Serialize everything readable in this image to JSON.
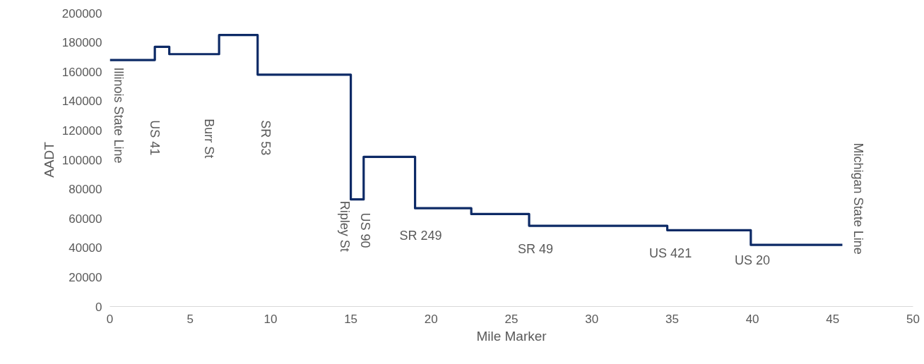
{
  "chart_data": {
    "type": "step",
    "xlabel": "Mile Marker",
    "ylabel": "AADT",
    "series": [
      {
        "color": "#0d2a66",
        "x": [
          0,
          2.8,
          3.7,
          6.8,
          9.2,
          15.0,
          15.8,
          19.0,
          22.5,
          26.1,
          34.7,
          39.9,
          45.6
        ],
        "values": [
          168000,
          177000,
          172000,
          185000,
          158000,
          73000,
          102000,
          67000,
          63000,
          55000,
          52000,
          42000,
          42000
        ]
      }
    ],
    "xlim": [
      0,
      50
    ],
    "xticks": [
      0,
      5,
      10,
      15,
      20,
      25,
      30,
      35,
      40,
      45,
      50
    ],
    "ylim": [
      0,
      200000
    ],
    "yticks": [
      0,
      20000,
      40000,
      60000,
      80000,
      100000,
      120000,
      140000,
      160000,
      180000,
      200000
    ],
    "grid": false,
    "line_style": "solid",
    "annotations": [
      "Illinois State Line",
      "US 41",
      "Burr St",
      "SR 53",
      "Ripley St",
      "US 90",
      "SR 249",
      "SR 49",
      "US 421",
      "US 20",
      "Michigan State Line"
    ]
  }
}
